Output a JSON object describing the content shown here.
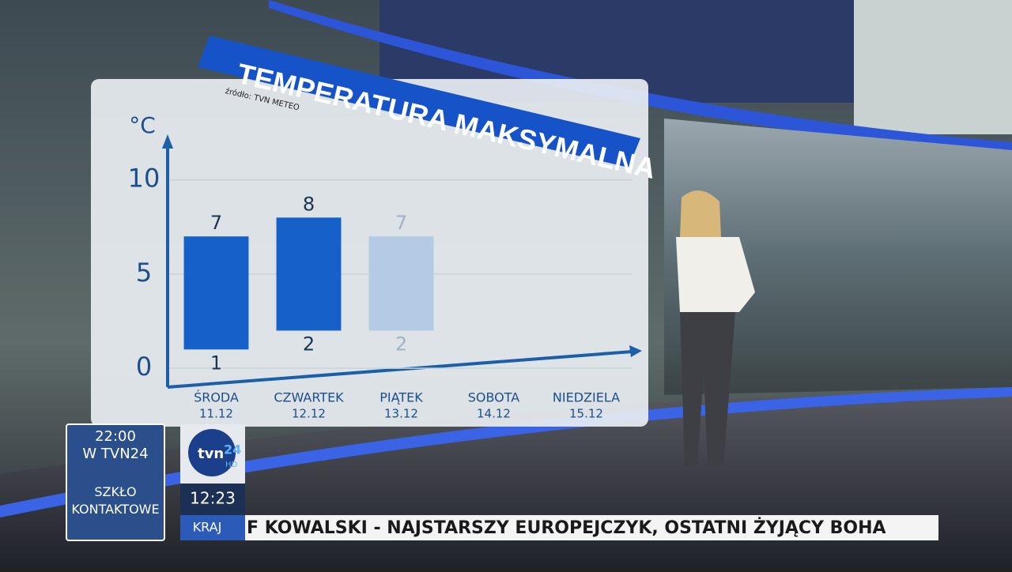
{
  "chart_data": {
    "type": "range-bar",
    "title": "TEMPERATURA MAKSYMALNA",
    "source": "źródło: TVN METEO",
    "y_label": "°C",
    "categories": [
      "ŚRODA",
      "CZWARTEK",
      "PIĄTEK",
      "SOBOTA",
      "NIEDZIELA"
    ],
    "dates": [
      "11.12",
      "12.12",
      "13.12",
      "14.12",
      "15.12"
    ],
    "high": [
      7,
      8,
      7,
      null,
      null
    ],
    "low": [
      1,
      2,
      2,
      null,
      null
    ],
    "colors": [
      "#1560c9",
      "#1560c9",
      "#b3cbe5",
      null,
      null
    ],
    "ylim": [
      -1,
      12
    ],
    "yticks": [
      0,
      5,
      10
    ],
    "grid": true
  },
  "promo": {
    "time": "22:00",
    "channel": "W TVN24",
    "program": "SZKŁO KONTAKTOWE"
  },
  "logo": {
    "tvn": "tvn",
    "num": "24",
    "hd": "HD"
  },
  "clock": "12:23",
  "section": "KRAJ",
  "ticker": "F KOWALSKI - NAJSTARSZY EUROPEJCZYK, OSTATNI ŻYJĄCY BOHA"
}
